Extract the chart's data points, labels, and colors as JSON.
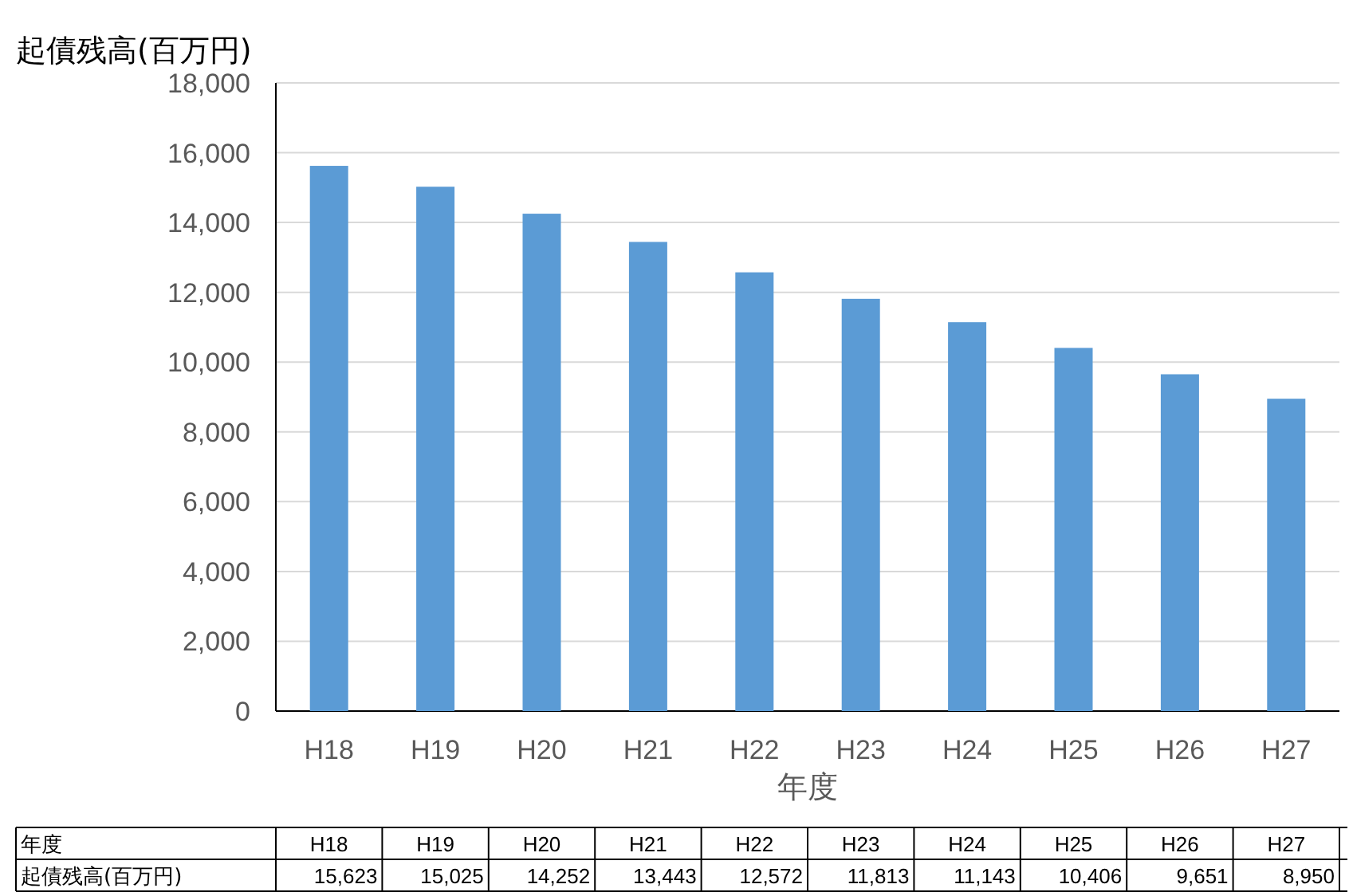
{
  "chart_data": {
    "type": "bar",
    "ylabel": "起債残高(百万円)",
    "xlabel": "年度",
    "categories": [
      "H18",
      "H19",
      "H20",
      "H21",
      "H22",
      "H23",
      "H24",
      "H25",
      "H26",
      "H27"
    ],
    "values": [
      15623,
      15025,
      14252,
      13443,
      12572,
      11813,
      11143,
      10406,
      9651,
      8950
    ],
    "color": "#5b9bd5",
    "ylim": [
      0,
      18000
    ],
    "yticks": [
      0,
      {
        "value": 2000,
        "label": "2,000"
      },
      {
        "value": 4000,
        "label": "4,000"
      },
      {
        "value": 6000,
        "label": "6,000"
      },
      {
        "value": 8000,
        "label": "8,000"
      },
      {
        "value": 10000,
        "label": "10,000"
      },
      {
        "value": 12000,
        "label": "12,000"
      },
      {
        "value": 14000,
        "label": "14,000"
      },
      {
        "value": 16000,
        "label": "16,000"
      },
      {
        "value": 18000,
        "label": "18,000"
      }
    ],
    "value_labels": [
      "15,623",
      "15,025",
      "14,252",
      "13,443",
      "12,572",
      "11,813",
      "11,143",
      "10,406",
      "9,651",
      "8,950"
    ],
    "grid": "y"
  }
}
